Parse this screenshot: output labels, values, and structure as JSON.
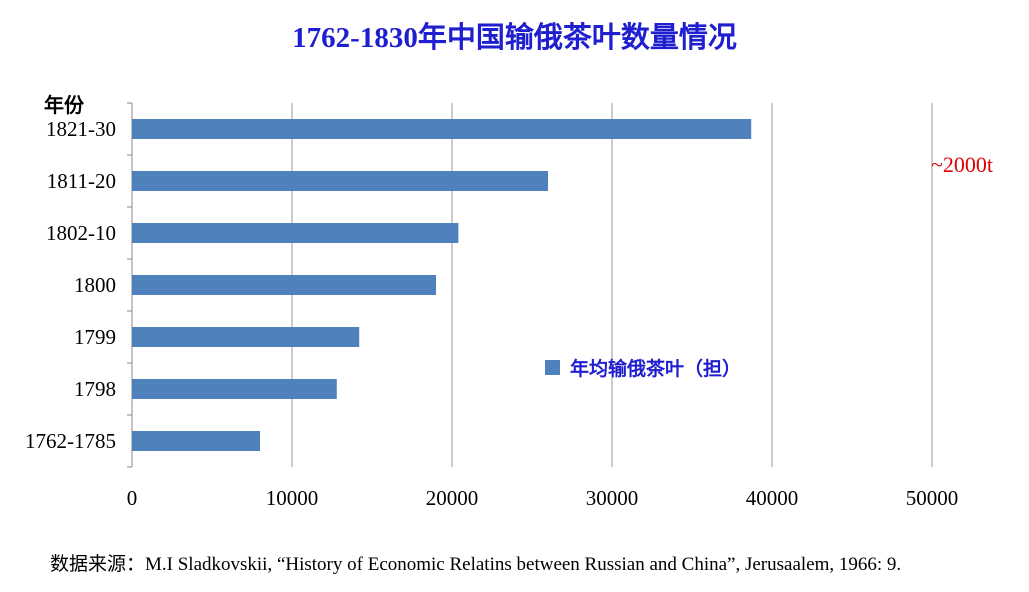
{
  "chart_data": {
    "type": "bar",
    "orientation": "horizontal",
    "title": "1762-1830年中国输俄茶叶数量情况",
    "ylabel": "年份",
    "categories": [
      "1821-30",
      "1811-20",
      "1802-10",
      "1800",
      "1799",
      "1798",
      "1762-1785"
    ],
    "series": [
      {
        "name": "年均输俄茶叶（担）",
        "color": "#4f81bd",
        "values": [
          38700,
          26000,
          20400,
          19000,
          14200,
          12800,
          8000
        ]
      }
    ],
    "xlim": [
      0,
      50000
    ],
    "xticks": [
      0,
      10000,
      20000,
      30000,
      40000,
      50000
    ],
    "grid": "vertical",
    "legend_position": "center-right",
    "annotation": "~2000t"
  },
  "source": "数据来源：M.I Sladkovskii, “History of Economic Relatins between Russian and China”, Jerusaalem, 1966: 9."
}
